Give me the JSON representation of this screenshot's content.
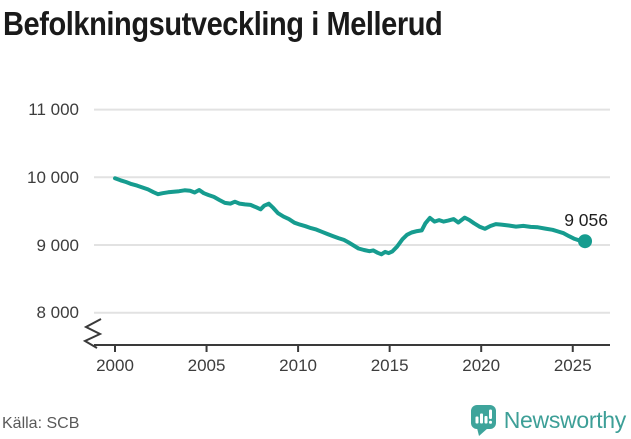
{
  "title": "Befolkningsutveckling i Mellerud",
  "annotation": {
    "end_label": "9 056"
  },
  "footer": {
    "source": "Källa: SCB",
    "brand": "Newsworthy"
  },
  "colors": {
    "line": "#169c8f",
    "marker": "#169c8f",
    "grid": "#e2e2e2",
    "axis": "#3a3a3a",
    "title_text": "#1a1a1a",
    "tick_text": "#3d3d3d",
    "annotation_text": "#1f1f1f",
    "source_text": "#595959",
    "brand_teal": "#3ea49b"
  },
  "chart_data": {
    "type": "line",
    "title": "Befolkningsutveckling i Mellerud",
    "xlabel": "",
    "ylabel": "",
    "x_range": [
      1998.9,
      2027.0
    ],
    "y_range_shown": [
      8000,
      11000
    ],
    "y_axis_break": true,
    "grid": "horizontal",
    "legend": "none",
    "x_ticks": {
      "values": [
        2000,
        2005,
        2010,
        2015,
        2020,
        2025
      ],
      "labels": [
        "2000",
        "2005",
        "2010",
        "2015",
        "2020",
        "2025"
      ]
    },
    "y_ticks": {
      "values": [
        8000,
        9000,
        10000,
        11000
      ],
      "labels": [
        "8 000",
        "9 000",
        "10 000",
        "11 000"
      ]
    },
    "end_point": {
      "x": 2025.67,
      "value": 9056,
      "label": "9 056"
    },
    "points": [
      [
        2000.0,
        9985
      ],
      [
        2000.3,
        9955
      ],
      [
        2000.6,
        9930
      ],
      [
        2000.9,
        9900
      ],
      [
        2001.2,
        9878
      ],
      [
        2001.5,
        9850
      ],
      [
        2001.8,
        9822
      ],
      [
        2002.1,
        9780
      ],
      [
        2002.35,
        9750
      ],
      [
        2002.6,
        9765
      ],
      [
        2002.9,
        9778
      ],
      [
        2003.2,
        9788
      ],
      [
        2003.5,
        9795
      ],
      [
        2003.8,
        9808
      ],
      [
        2004.1,
        9800
      ],
      [
        2004.35,
        9775
      ],
      [
        2004.6,
        9812
      ],
      [
        2004.85,
        9765
      ],
      [
        2005.1,
        9738
      ],
      [
        2005.4,
        9710
      ],
      [
        2005.7,
        9665
      ],
      [
        2006.0,
        9622
      ],
      [
        2006.3,
        9612
      ],
      [
        2006.55,
        9640
      ],
      [
        2006.8,
        9612
      ],
      [
        2007.1,
        9600
      ],
      [
        2007.4,
        9592
      ],
      [
        2007.7,
        9558
      ],
      [
        2007.95,
        9528
      ],
      [
        2008.15,
        9580
      ],
      [
        2008.4,
        9610
      ],
      [
        2008.65,
        9545
      ],
      [
        2008.9,
        9470
      ],
      [
        2009.2,
        9420
      ],
      [
        2009.5,
        9382
      ],
      [
        2009.8,
        9330
      ],
      [
        2010.1,
        9302
      ],
      [
        2010.4,
        9278
      ],
      [
        2010.7,
        9250
      ],
      [
        2011.0,
        9228
      ],
      [
        2011.3,
        9195
      ],
      [
        2011.6,
        9162
      ],
      [
        2011.9,
        9132
      ],
      [
        2012.2,
        9102
      ],
      [
        2012.5,
        9075
      ],
      [
        2012.75,
        9038
      ],
      [
        2013.0,
        8998
      ],
      [
        2013.3,
        8948
      ],
      [
        2013.6,
        8926
      ],
      [
        2013.9,
        8908
      ],
      [
        2014.1,
        8920
      ],
      [
        2014.35,
        8885
      ],
      [
        2014.55,
        8862
      ],
      [
        2014.75,
        8898
      ],
      [
        2014.95,
        8880
      ],
      [
        2015.15,
        8905
      ],
      [
        2015.4,
        8975
      ],
      [
        2015.7,
        9085
      ],
      [
        2015.95,
        9150
      ],
      [
        2016.2,
        9185
      ],
      [
        2016.5,
        9205
      ],
      [
        2016.75,
        9215
      ],
      [
        2016.95,
        9320
      ],
      [
        2017.2,
        9400
      ],
      [
        2017.45,
        9345
      ],
      [
        2017.7,
        9368
      ],
      [
        2017.95,
        9345
      ],
      [
        2018.2,
        9360
      ],
      [
        2018.5,
        9382
      ],
      [
        2018.75,
        9332
      ],
      [
        2019.1,
        9405
      ],
      [
        2019.35,
        9370
      ],
      [
        2019.6,
        9322
      ],
      [
        2019.9,
        9272
      ],
      [
        2020.2,
        9240
      ],
      [
        2020.5,
        9280
      ],
      [
        2020.8,
        9308
      ],
      [
        2021.1,
        9302
      ],
      [
        2021.5,
        9288
      ],
      [
        2021.9,
        9272
      ],
      [
        2022.3,
        9282
      ],
      [
        2022.7,
        9268
      ],
      [
        2023.1,
        9262
      ],
      [
        2023.5,
        9242
      ],
      [
        2023.9,
        9225
      ],
      [
        2024.2,
        9200
      ],
      [
        2024.5,
        9175
      ],
      [
        2024.8,
        9130
      ],
      [
        2025.1,
        9090
      ],
      [
        2025.4,
        9064
      ],
      [
        2025.67,
        9056
      ]
    ]
  }
}
